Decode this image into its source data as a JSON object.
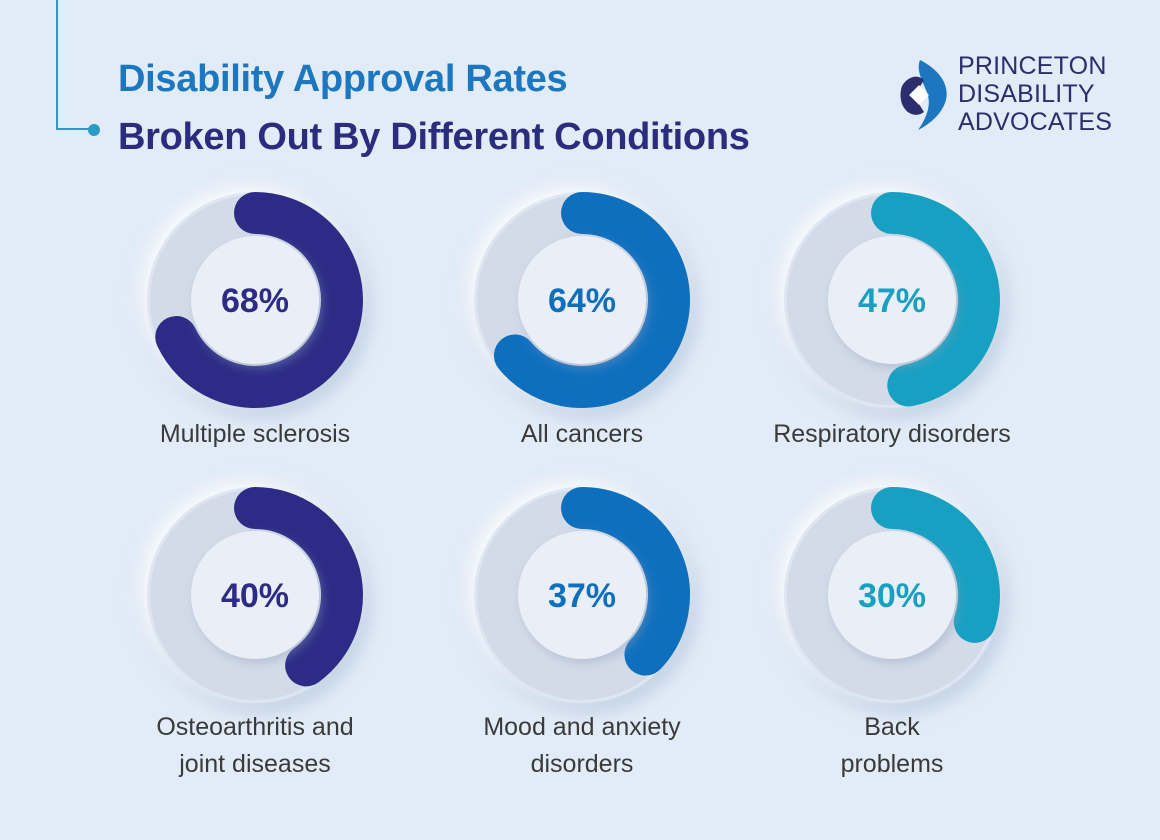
{
  "header": {
    "title_line1": "Disability Approval Rates",
    "title_line2": "Broken Out By Different Conditions"
  },
  "logo": {
    "line1": "PRINCETON",
    "line2": "DISABILITY",
    "line3": "ADVOCATES"
  },
  "colors": {
    "background": "#e2ecf8",
    "title_line1": "#1d77c0",
    "title_line2": "#2a2c7d",
    "navy": "#2c2c86",
    "blue": "#0f6fbf",
    "teal": "#17a0c2"
  },
  "chart_data": {
    "type": "pie",
    "style": "donut-progress",
    "items": [
      {
        "label": [
          "Multiple sclerosis"
        ],
        "value": 68,
        "display": "68%",
        "color": "#2c2c86"
      },
      {
        "label": [
          "All cancers"
        ],
        "value": 64,
        "display": "64%",
        "color": "#0f6fbf"
      },
      {
        "label": [
          "Respiratory disorders"
        ],
        "value": 47,
        "display": "47%",
        "color": "#17a0c2"
      },
      {
        "label": [
          "Osteoarthritis and",
          "joint diseases"
        ],
        "value": 40,
        "display": "40%",
        "color": "#2c2c86"
      },
      {
        "label": [
          "Mood and anxiety",
          "disorders"
        ],
        "value": 37,
        "display": "37%",
        "color": "#0f6fbf"
      },
      {
        "label": [
          "Back",
          "problems"
        ],
        "value": 30,
        "display": "30%",
        "color": "#17a0c2"
      }
    ]
  }
}
